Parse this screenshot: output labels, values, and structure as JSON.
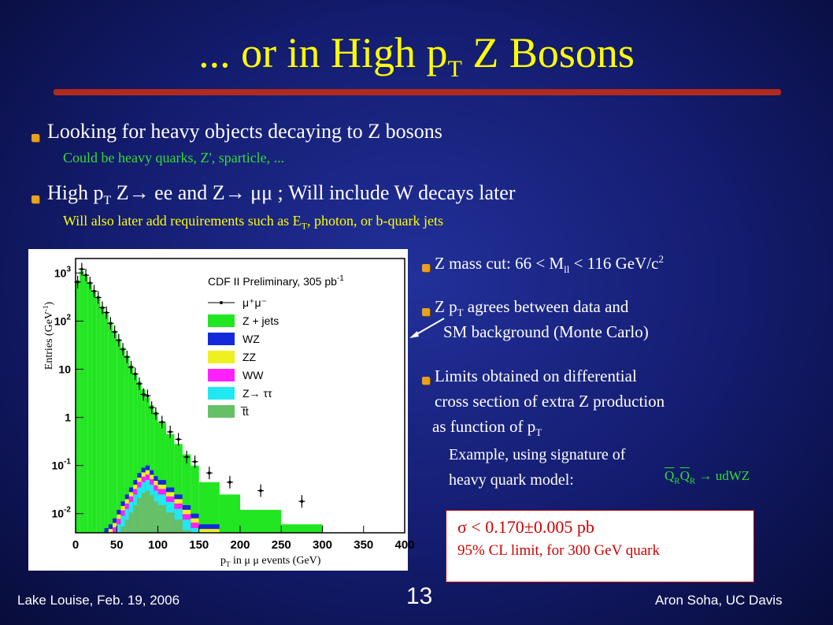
{
  "slide": {
    "title_main": "... or in High p",
    "title_sub": "T",
    "title_end": " Z Bosons",
    "bullets": [
      {
        "text": "Looking for heavy objects decaying to Z bosons",
        "note": "Could be heavy quarks, Z', sparticle, ..."
      },
      {
        "text_a": "High p",
        "text_sub": "T",
        "text_b": " Z→  ee and Z→  μμ ;  Will include W decays later",
        "note_a": "Will also later add requirements such as E",
        "note_sub": "T",
        "note_b": ", photon, or b-quark jets"
      }
    ],
    "right": {
      "mass_a": "Z mass cut:  66 < M",
      "mass_sub": "ll",
      "mass_b": " < 116 GeV/c",
      "mass_sup": "2",
      "pt_a": "Z p",
      "pt_sub": "T",
      "pt_b": " agrees between data and",
      "pt_line2": "SM background (Monte Carlo)",
      "lim_line1": "Limits obtained on differential",
      "lim_line2": "cross section of extra Z production",
      "lim_line3a": "as function of p",
      "lim_line3sub": "T",
      "ex_line1": "Example, using signature of",
      "ex_line2": "heavy quark model:",
      "decay_q": "Q",
      "decay_r": "R",
      "decay_rest": " →   udWZ"
    },
    "result": {
      "line1": "σ < 0.170±0.005 pb",
      "line2": "95% CL limit, for 300 GeV quark"
    },
    "footer": {
      "left": "Lake Louise, Feb. 19, 2006",
      "center": "13",
      "right": "Aron Soha, UC Davis"
    }
  },
  "chart_data": {
    "type": "bar",
    "title": "CDF II Preliminary, 305 pb",
    "title_sup": "-1",
    "ylabel": "Entries (GeV",
    "ylabel_sup": "-1",
    "xlabel_a": "p",
    "xlabel_sub": "T",
    "xlabel_b": " in μ  μ  events (GeV)",
    "log_y": true,
    "xlim": [
      0,
      400
    ],
    "ylim": [
      0.004,
      2000
    ],
    "x_ticks": [
      "0",
      "50",
      "100",
      "150",
      "200",
      "250",
      "300",
      "350",
      "400"
    ],
    "y_ticks": [
      {
        "m": "10",
        "e": "3",
        "v": 1000
      },
      {
        "m": "10",
        "e": "2",
        "v": 100
      },
      {
        "m": "10",
        "e": "",
        "v": 10
      },
      {
        "m": "1",
        "e": "",
        "v": 1
      },
      {
        "m": "10",
        "e": "-1",
        "v": 0.1
      },
      {
        "m": "10",
        "e": "-2",
        "v": 0.01
      }
    ],
    "bins": [
      0,
      5,
      10,
      15,
      20,
      25,
      30,
      35,
      40,
      45,
      50,
      55,
      60,
      65,
      70,
      75,
      80,
      85,
      90,
      95,
      100,
      110,
      120,
      130,
      140,
      150,
      175,
      200,
      250,
      300
    ],
    "series": [
      {
        "name": "Z + jets",
        "color": "#22e622"
      },
      {
        "name": "WZ",
        "color": "#1428dc"
      },
      {
        "name": "ZZ",
        "color": "#f0f020"
      },
      {
        "name": "WW",
        "color": "#ff20ff"
      },
      {
        "name": "Z→ ττ",
        "color": "#20e8f0"
      },
      {
        "name": "t̅t",
        "color": "#66c066"
      }
    ],
    "legend_data": "μ⁺μ⁻",
    "stack_totals": [
      700,
      1100,
      850,
      600,
      430,
      300,
      200,
      140,
      95,
      62,
      42,
      28,
      19,
      12,
      8,
      5.5,
      3.8,
      2.6,
      1.8,
      1.3,
      0.8,
      0.45,
      0.28,
      0.17,
      0.1,
      0.045,
      0.025,
      0.012,
      0.006
    ],
    "low_component_totals": [
      0.004,
      0.004,
      0.004,
      0.004,
      0.004,
      0.004,
      0.004,
      0.005,
      0.006,
      0.008,
      0.012,
      0.018,
      0.025,
      0.035,
      0.05,
      0.07,
      0.09,
      0.1,
      0.08,
      0.06,
      0.05,
      0.035,
      0.025,
      0.015,
      0.01,
      0.006,
      0.004,
      0.004,
      0.004
    ],
    "data_points": [
      {
        "x": 2.5,
        "y": 650
      },
      {
        "x": 7.5,
        "y": 1200
      },
      {
        "x": 12.5,
        "y": 900
      },
      {
        "x": 17.5,
        "y": 620
      },
      {
        "x": 22.5,
        "y": 420
      },
      {
        "x": 27.5,
        "y": 310
      },
      {
        "x": 32.5,
        "y": 190
      },
      {
        "x": 37.5,
        "y": 150
      },
      {
        "x": 42.5,
        "y": 90
      },
      {
        "x": 47.5,
        "y": 60
      },
      {
        "x": 52.5,
        "y": 40
      },
      {
        "x": 57.5,
        "y": 26
      },
      {
        "x": 62.5,
        "y": 18
      },
      {
        "x": 67.5,
        "y": 11
      },
      {
        "x": 72.5,
        "y": 8
      },
      {
        "x": 77.5,
        "y": 5
      },
      {
        "x": 82.5,
        "y": 3
      },
      {
        "x": 87.5,
        "y": 2.8
      },
      {
        "x": 92.5,
        "y": 1.6
      },
      {
        "x": 97.5,
        "y": 1.2
      },
      {
        "x": 105,
        "y": 0.8
      },
      {
        "x": 115,
        "y": 0.5
      },
      {
        "x": 125,
        "y": 0.35
      },
      {
        "x": 135,
        "y": 0.15
      },
      {
        "x": 145,
        "y": 0.12
      },
      {
        "x": 162.5,
        "y": 0.07
      },
      {
        "x": 187.5,
        "y": 0.045
      },
      {
        "x": 225,
        "y": 0.03
      },
      {
        "x": 275,
        "y": 0.018
      }
    ]
  }
}
